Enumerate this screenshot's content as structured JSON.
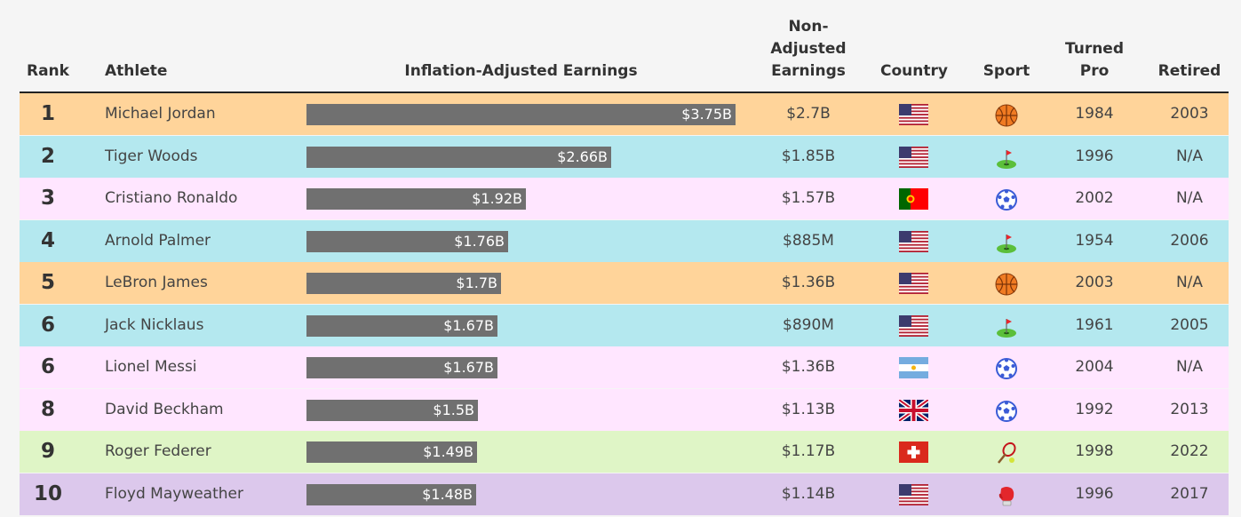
{
  "headers": {
    "rank": "Rank",
    "athlete": "Athlete",
    "adjusted": "Inflation-Adjusted Earnings",
    "nonadj_1": "Non-",
    "nonadj_2": "Adjusted",
    "nonadj_3": "Earnings",
    "country": "Country",
    "sport": "Sport",
    "turned_1": "Turned",
    "turned_2": "Pro",
    "retired": "Retired"
  },
  "colors": {
    "basketball_row": "#ffd49a",
    "golf_row": "#b4e8ef",
    "soccer_row": "#ffe6ff",
    "tennis_row": "#dff5c6",
    "boxing_row": "#dcc8ec",
    "bar": "#707070"
  },
  "chart_data": {
    "type": "bar",
    "orientation": "horizontal",
    "title": "",
    "xlim": [
      0,
      3.75
    ],
    "categories": [
      "Michael Jordan",
      "Tiger Woods",
      "Cristiano Ronaldo",
      "Arnold Palmer",
      "LeBron James",
      "Jack Nicklaus",
      "Lionel Messi",
      "David Beckham",
      "Roger Federer",
      "Floyd Mayweather"
    ],
    "values": [
      3.75,
      2.66,
      1.92,
      1.76,
      1.7,
      1.67,
      1.67,
      1.5,
      1.49,
      1.48
    ],
    "value_labels": [
      "$3.75B",
      "$2.66B",
      "$1.92B",
      "$1.76B",
      "$1.7B",
      "$1.67B",
      "$1.67B",
      "$1.5B",
      "$1.49B",
      "$1.48B"
    ]
  },
  "rows": [
    {
      "rank": "1",
      "athlete": "Michael Jordan",
      "earnings": "$3.75B",
      "nonadj": "$2.7B",
      "country": "us",
      "sport": "basketball",
      "turned_pro": "1984",
      "retired": "2003"
    },
    {
      "rank": "2",
      "athlete": "Tiger Woods",
      "earnings": "$2.66B",
      "nonadj": "$1.85B",
      "country": "us",
      "sport": "golf",
      "turned_pro": "1996",
      "retired": "N/A"
    },
    {
      "rank": "3",
      "athlete": "Cristiano Ronaldo",
      "earnings": "$1.92B",
      "nonadj": "$1.57B",
      "country": "pt",
      "sport": "soccer",
      "turned_pro": "2002",
      "retired": "N/A"
    },
    {
      "rank": "4",
      "athlete": "Arnold Palmer",
      "earnings": "$1.76B",
      "nonadj": "$885M",
      "country": "us",
      "sport": "golf",
      "turned_pro": "1954",
      "retired": "2006"
    },
    {
      "rank": "5",
      "athlete": "LeBron James",
      "earnings": "$1.7B",
      "nonadj": "$1.36B",
      "country": "us",
      "sport": "basketball",
      "turned_pro": "2003",
      "retired": "N/A"
    },
    {
      "rank": "6",
      "athlete": "Jack Nicklaus",
      "earnings": "$1.67B",
      "nonadj": "$890M",
      "country": "us",
      "sport": "golf",
      "turned_pro": "1961",
      "retired": "2005"
    },
    {
      "rank": "6",
      "athlete": "Lionel Messi",
      "earnings": "$1.67B",
      "nonadj": "$1.36B",
      "country": "ar",
      "sport": "soccer",
      "turned_pro": "2004",
      "retired": "N/A"
    },
    {
      "rank": "8",
      "athlete": "David Beckham",
      "earnings": "$1.5B",
      "nonadj": "$1.13B",
      "country": "gb",
      "sport": "soccer",
      "turned_pro": "1992",
      "retired": "2013"
    },
    {
      "rank": "9",
      "athlete": "Roger Federer",
      "earnings": "$1.49B",
      "nonadj": "$1.17B",
      "country": "ch",
      "sport": "tennis",
      "turned_pro": "1998",
      "retired": "2022"
    },
    {
      "rank": "10",
      "athlete": "Floyd Mayweather",
      "earnings": "$1.48B",
      "nonadj": "$1.14B",
      "country": "us",
      "sport": "boxing",
      "turned_pro": "1996",
      "retired": "2017"
    }
  ]
}
